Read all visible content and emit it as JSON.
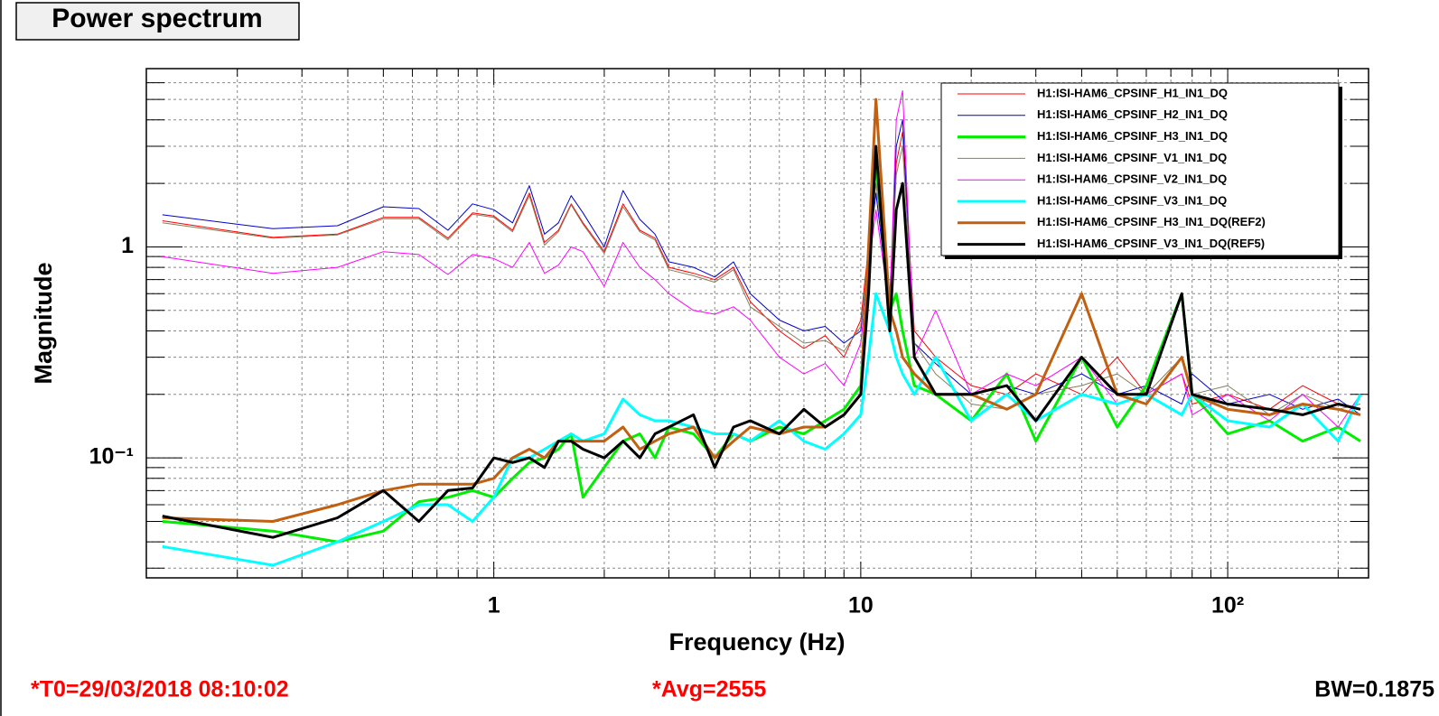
{
  "chart_data": {
    "type": "line",
    "title": "Power spectrum",
    "xlabel": "Frequency (Hz)",
    "ylabel": "Magnitude",
    "footer": {
      "t0": "*T0=29/03/2018 08:10:02",
      "avg": "*Avg=2555",
      "bw": "BW=0.1875"
    },
    "xscale": "log",
    "yscale": "log",
    "grid": true,
    "legend": "top-right",
    "xlim": [
      0.113,
      242
    ],
    "ylim": [
      0.027,
      7
    ],
    "xticks": [
      1,
      10,
      {
        "value": 100,
        "label": "10²"
      }
    ],
    "xminorticks": [
      0.2,
      0.3,
      0.4,
      0.5,
      0.6,
      0.7,
      0.8,
      0.9,
      2,
      3,
      4,
      5,
      6,
      7,
      8,
      9,
      20,
      30,
      40,
      50,
      60,
      70,
      80,
      90,
      200
    ],
    "yticks": [
      {
        "value": 0.1,
        "label": "10⁻¹"
      },
      1
    ],
    "yminorticks": [
      0.03,
      0.04,
      0.05,
      0.06,
      0.07,
      0.08,
      0.09,
      0.2,
      0.3,
      0.4,
      0.5,
      0.6,
      0.7,
      0.8,
      0.9,
      2,
      3,
      4,
      5,
      6
    ],
    "x": [
      0.125,
      0.25,
      0.375,
      0.5,
      0.625,
      0.75,
      0.875,
      1,
      1.125,
      1.25,
      1.375,
      1.5,
      1.625,
      1.75,
      2,
      2.25,
      2.5,
      2.75,
      3,
      3.5,
      4,
      4.5,
      5,
      6,
      7,
      8,
      9,
      10,
      10.5,
      11,
      12,
      12.5,
      13,
      14,
      16,
      20,
      25,
      30,
      40,
      50,
      60,
      75,
      80,
      100,
      130,
      160,
      200,
      230
    ],
    "series": [
      {
        "name": "H1:ISI-HAM6_CPSINF_H1_IN1_DQ",
        "color": "#ff0000",
        "width": 1,
        "values": [
          1.33,
          1.11,
          1.15,
          1.38,
          1.38,
          1.1,
          1.45,
          1.4,
          1.2,
          1.8,
          1.05,
          1.2,
          1.6,
          1.3,
          0.95,
          1.6,
          1.2,
          1.1,
          0.8,
          0.75,
          0.7,
          0.8,
          0.55,
          0.4,
          0.33,
          0.38,
          0.3,
          0.45,
          1.0,
          2.2,
          0.6,
          2.5,
          3.5,
          0.4,
          0.3,
          0.22,
          0.2,
          0.25,
          0.2,
          0.3,
          0.2,
          0.25,
          0.18,
          0.2,
          0.17,
          0.22,
          0.18,
          0.17
        ]
      },
      {
        "name": "H1:ISI-HAM6_CPSINF_H2_IN1_DQ",
        "color": "#0000cc",
        "width": 1,
        "values": [
          1.42,
          1.22,
          1.26,
          1.55,
          1.52,
          1.2,
          1.6,
          1.5,
          1.3,
          1.95,
          1.15,
          1.3,
          1.75,
          1.45,
          1.0,
          1.85,
          1.35,
          1.15,
          0.85,
          0.8,
          0.72,
          0.85,
          0.6,
          0.45,
          0.4,
          0.42,
          0.35,
          0.4,
          0.9,
          1.8,
          0.5,
          3.0,
          4.0,
          0.35,
          0.28,
          0.2,
          0.22,
          0.2,
          0.25,
          0.2,
          0.22,
          0.18,
          0.25,
          0.18,
          0.2,
          0.17,
          0.19,
          0.16
        ]
      },
      {
        "name": "H1:ISI-HAM6_CPSINF_H3_IN1_DQ",
        "color": "#00ee00",
        "width": 3,
        "values": [
          0.05,
          0.045,
          0.04,
          0.045,
          0.062,
          0.065,
          0.07,
          0.065,
          0.08,
          0.095,
          0.1,
          0.11,
          0.13,
          0.065,
          0.09,
          0.12,
          0.13,
          0.1,
          0.14,
          0.13,
          0.1,
          0.13,
          0.12,
          0.14,
          0.13,
          0.15,
          0.17,
          0.22,
          0.9,
          2.5,
          0.5,
          0.6,
          0.4,
          0.22,
          0.2,
          0.15,
          0.25,
          0.12,
          0.3,
          0.14,
          0.22,
          0.6,
          0.2,
          0.13,
          0.15,
          0.12,
          0.14,
          0.12
        ]
      },
      {
        "name": "H1:ISI-HAM6_CPSINF_V1_IN1_DQ",
        "color": "#857f5c",
        "width": 1,
        "values": [
          1.3,
          1.1,
          1.14,
          1.36,
          1.36,
          1.08,
          1.43,
          1.38,
          1.18,
          1.75,
          1.02,
          1.18,
          1.58,
          1.28,
          0.93,
          1.55,
          1.18,
          1.08,
          0.78,
          0.73,
          0.68,
          0.78,
          0.52,
          0.42,
          0.35,
          0.36,
          0.32,
          0.42,
          0.9,
          2.0,
          0.55,
          2.2,
          3.0,
          0.35,
          0.25,
          0.18,
          0.17,
          0.2,
          0.22,
          0.25,
          0.2,
          0.3,
          0.2,
          0.22,
          0.16,
          0.2,
          0.17,
          0.18
        ]
      },
      {
        "name": "H1:ISI-HAM6_CPSINF_V2_IN1_DQ",
        "color": "#ff00ff",
        "width": 1,
        "values": [
          0.9,
          0.75,
          0.8,
          0.95,
          0.92,
          0.74,
          0.92,
          0.88,
          0.8,
          1.05,
          0.75,
          0.82,
          1.0,
          0.95,
          0.65,
          1.05,
          0.8,
          0.7,
          0.6,
          0.5,
          0.48,
          0.52,
          0.45,
          0.3,
          0.25,
          0.28,
          0.22,
          0.35,
          0.8,
          1.5,
          0.5,
          4.0,
          5.5,
          0.3,
          0.5,
          0.2,
          0.25,
          0.22,
          0.3,
          0.18,
          0.2,
          0.25,
          0.16,
          0.2,
          0.15,
          0.2,
          0.14,
          0.2
        ]
      },
      {
        "name": "H1:ISI-HAM6_CPSINF_V3_IN1_DQ",
        "color": "#00ffff",
        "width": 3,
        "values": [
          0.038,
          0.031,
          0.04,
          0.05,
          0.06,
          0.06,
          0.05,
          0.065,
          0.1,
          0.1,
          0.11,
          0.12,
          0.13,
          0.12,
          0.13,
          0.19,
          0.16,
          0.15,
          0.15,
          0.14,
          0.13,
          0.13,
          0.12,
          0.15,
          0.12,
          0.11,
          0.13,
          0.16,
          0.3,
          0.6,
          0.4,
          0.3,
          0.25,
          0.2,
          0.3,
          0.15,
          0.2,
          0.15,
          0.2,
          0.18,
          0.2,
          0.16,
          0.2,
          0.15,
          0.14,
          0.18,
          0.12,
          0.2
        ]
      },
      {
        "name": "H1:ISI-HAM6_CPSINF_H3_IN1_DQ(REF2)",
        "color": "#c06010",
        "width": 3,
        "values": [
          0.052,
          0.05,
          0.06,
          0.07,
          0.075,
          0.075,
          0.075,
          0.08,
          0.1,
          0.11,
          0.1,
          0.12,
          0.12,
          0.12,
          0.12,
          0.14,
          0.11,
          0.12,
          0.13,
          0.14,
          0.1,
          0.12,
          0.14,
          0.13,
          0.14,
          0.14,
          0.16,
          0.2,
          1.0,
          5.0,
          0.5,
          0.4,
          0.3,
          0.25,
          0.2,
          0.2,
          0.17,
          0.2,
          0.6,
          0.2,
          0.18,
          0.3,
          0.2,
          0.17,
          0.16,
          0.18,
          0.17,
          0.16
        ]
      },
      {
        "name": "H1:ISI-HAM6_CPSINF_V3_IN1_DQ(REF5)",
        "color": "#000000",
        "width": 3,
        "values": [
          0.053,
          0.042,
          0.052,
          0.07,
          0.05,
          0.07,
          0.072,
          0.1,
          0.095,
          0.1,
          0.09,
          0.12,
          0.12,
          0.11,
          0.1,
          0.12,
          0.1,
          0.13,
          0.14,
          0.16,
          0.09,
          0.14,
          0.15,
          0.13,
          0.17,
          0.14,
          0.16,
          0.2,
          0.6,
          3.0,
          0.4,
          1.5,
          2.0,
          0.3,
          0.2,
          0.2,
          0.22,
          0.15,
          0.3,
          0.2,
          0.2,
          0.6,
          0.2,
          0.18,
          0.17,
          0.16,
          0.18,
          0.17
        ]
      }
    ]
  }
}
